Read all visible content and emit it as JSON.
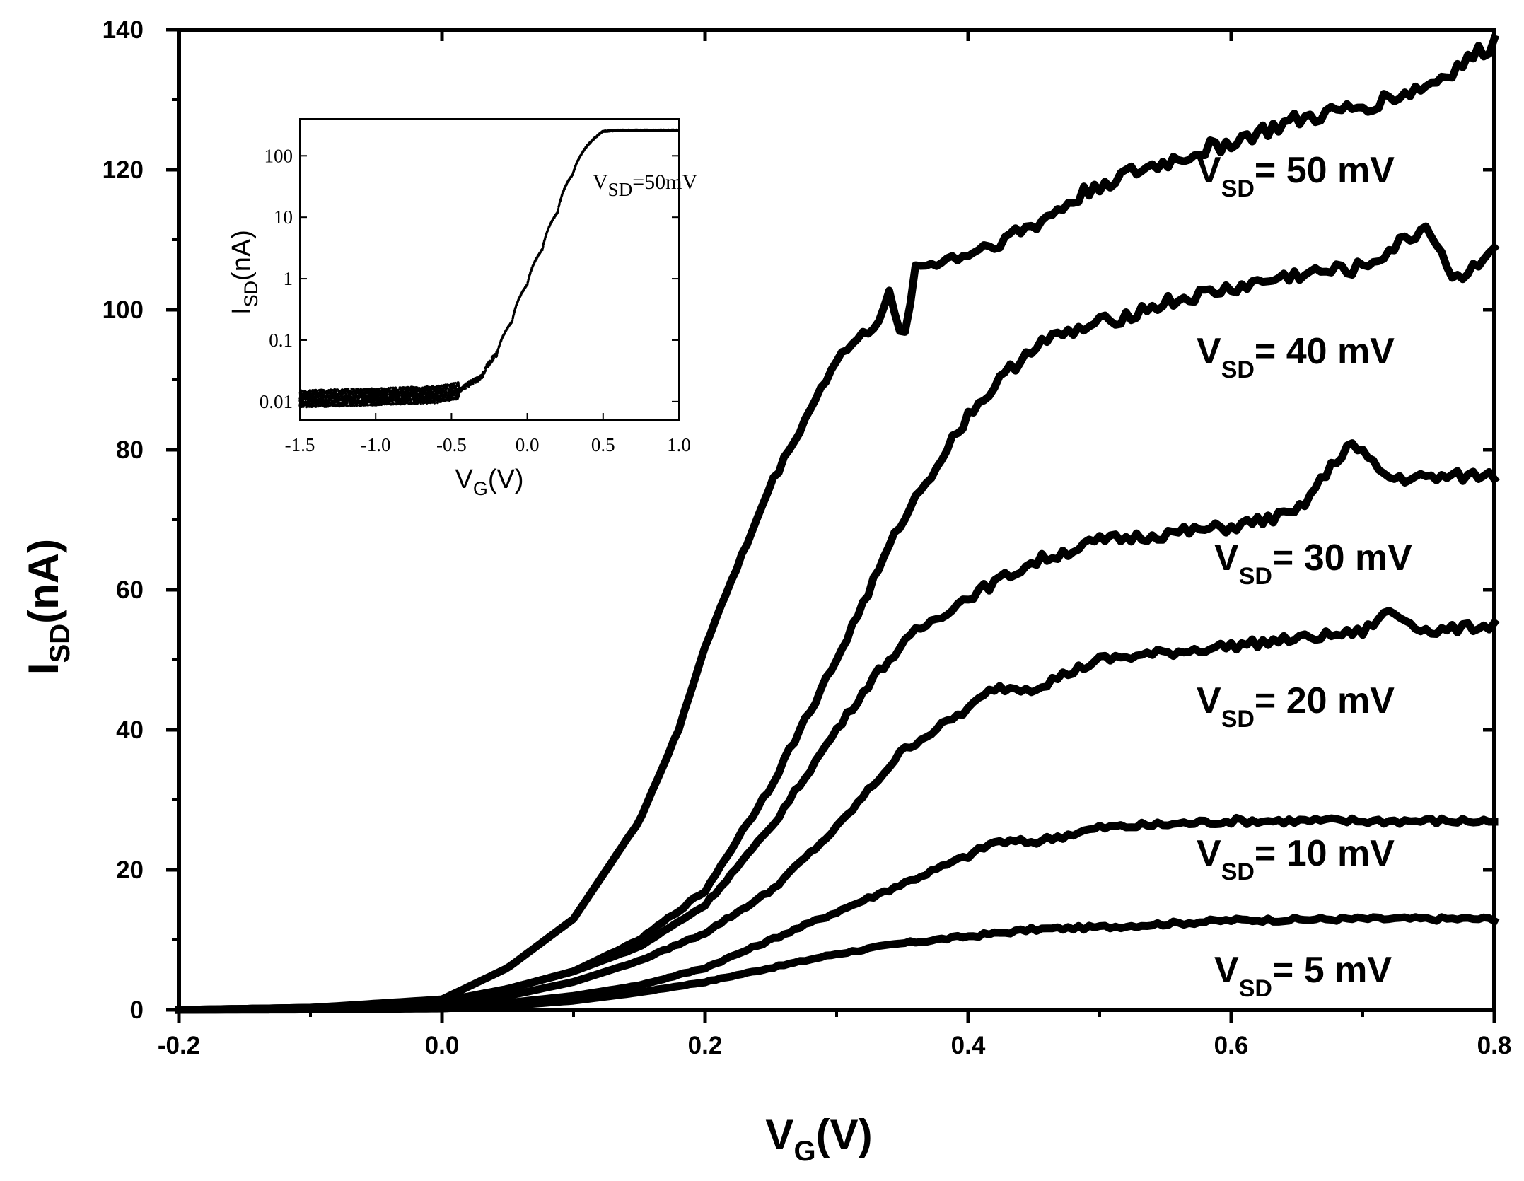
{
  "chart_data": [
    {
      "type": "line",
      "title": "",
      "xlabel": {
        "main": "V",
        "sub": "G",
        "unit": "(V)"
      },
      "ylabel": {
        "main": "I",
        "sub": "SD",
        "unit": "(nA)"
      },
      "xlim": [
        -0.2,
        0.8
      ],
      "ylim": [
        0,
        140
      ],
      "x_ticks": [
        -0.2,
        0.0,
        0.2,
        0.4,
        0.6,
        0.8
      ],
      "x_tick_labels": [
        "-0.2",
        "0.0",
        "0.2",
        "0.4",
        "0.6",
        "0.8"
      ],
      "y_ticks": [
        0,
        20,
        40,
        60,
        80,
        100,
        120,
        140
      ],
      "y_tick_labels": [
        "0",
        "20",
        "40",
        "60",
        "80",
        "100",
        "120",
        "140"
      ],
      "color": "#000000",
      "series": [
        {
          "id": "5",
          "name": "V_SD = 5 mV",
          "label": {
            "main": "V",
            "sub": "SD",
            "value": "= 5 mV"
          },
          "x": [
            -0.2,
            -0.1,
            0.0,
            0.05,
            0.1,
            0.15,
            0.2,
            0.25,
            0.3,
            0.35,
            0.4,
            0.45,
            0.5,
            0.55,
            0.6,
            0.7,
            0.8
          ],
          "y": [
            0,
            0.05,
            0.2,
            0.6,
            1.3,
            2.5,
            4.0,
            6.0,
            8.0,
            9.5,
            10.5,
            11.5,
            11.8,
            12.3,
            12.8,
            13.0,
            13.0
          ]
        },
        {
          "id": "10",
          "name": "V_SD = 10 mV",
          "label": {
            "main": "V",
            "sub": "SD",
            "value": "= 10 mV"
          },
          "x": [
            -0.2,
            -0.1,
            0.0,
            0.05,
            0.1,
            0.15,
            0.2,
            0.25,
            0.3,
            0.35,
            0.4,
            0.42,
            0.45,
            0.5,
            0.55,
            0.6,
            0.7,
            0.8
          ],
          "y": [
            0,
            0.1,
            0.4,
            1.0,
            2.0,
            3.5,
            6.0,
            10.0,
            14.0,
            18.0,
            22.0,
            24.0,
            24.0,
            26.0,
            26.5,
            27.0,
            27.0,
            27.0
          ]
        },
        {
          "id": "20",
          "name": "V_SD = 20 mV",
          "label": {
            "main": "V",
            "sub": "SD",
            "value": "= 20 mV"
          },
          "x": [
            -0.2,
            -0.1,
            0.0,
            0.05,
            0.1,
            0.15,
            0.2,
            0.25,
            0.3,
            0.35,
            0.4,
            0.42,
            0.45,
            0.5,
            0.55,
            0.6,
            0.65,
            0.7,
            0.72,
            0.75,
            0.8
          ],
          "y": [
            0,
            0.2,
            0.8,
            2.0,
            4.0,
            7.0,
            11.0,
            17.0,
            26.0,
            37.0,
            43.0,
            46.0,
            46.0,
            50.0,
            51.0,
            52.0,
            53.0,
            54.0,
            57.0,
            54.0,
            55.0
          ]
        },
        {
          "id": "30",
          "name": "V_SD = 30 mV",
          "label": {
            "main": "V",
            "sub": "SD",
            "value": "= 30 mV"
          },
          "x": [
            -0.2,
            -0.1,
            0.0,
            0.05,
            0.1,
            0.15,
            0.2,
            0.25,
            0.3,
            0.33,
            0.36,
            0.4,
            0.45,
            0.5,
            0.55,
            0.6,
            0.65,
            0.69,
            0.72,
            0.75,
            0.8
          ],
          "y": [
            0,
            0.3,
            1.2,
            3.0,
            5.5,
            9.0,
            15.0,
            26.0,
            40.0,
            48.0,
            54.0,
            59.0,
            64.0,
            67.0,
            68.0,
            69.0,
            71.0,
            81.0,
            76.0,
            76.0,
            76.5
          ]
        },
        {
          "id": "40",
          "name": "V_SD = 40 mV",
          "label": {
            "main": "V",
            "sub": "SD",
            "value": "= 40 mV"
          },
          "x": [
            -0.2,
            -0.1,
            0.0,
            0.05,
            0.1,
            0.15,
            0.2,
            0.25,
            0.3,
            0.35,
            0.4,
            0.45,
            0.5,
            0.55,
            0.6,
            0.65,
            0.7,
            0.75,
            0.77,
            0.8
          ],
          "y": [
            0,
            0.3,
            1.2,
            3.0,
            5.5,
            10.0,
            17.0,
            32.0,
            50.0,
            70.0,
            85.0,
            95.0,
            98.0,
            101.0,
            103.0,
            105.0,
            106.0,
            112.0,
            104.0,
            109.0
          ]
        },
        {
          "id": "50",
          "name": "V_SD = 50 mV",
          "label": {
            "main": "V",
            "sub": "SD",
            "value": "= 50 mV"
          },
          "x": [
            -0.2,
            -0.1,
            0.0,
            0.05,
            0.1,
            0.15,
            0.18,
            0.2,
            0.25,
            0.3,
            0.33,
            0.34,
            0.35,
            0.36,
            0.4,
            0.45,
            0.5,
            0.55,
            0.6,
            0.65,
            0.7,
            0.75,
            0.8
          ],
          "y": [
            0,
            0.3,
            1.5,
            6.0,
            13.0,
            27.0,
            40.0,
            52.0,
            75.0,
            93.0,
            98.0,
            102.0,
            95.0,
            106.0,
            108.0,
            112.0,
            118.0,
            121.0,
            124.0,
            127.0,
            129.0,
            132.0,
            138.0
          ]
        }
      ]
    },
    {
      "type": "scatter",
      "title": {
        "main": "V",
        "sub": "SD",
        "value": "=50mV"
      },
      "xlabel": {
        "main": "V",
        "sub": "G",
        "unit": "(V)"
      },
      "ylabel": {
        "main": "I",
        "sub": "SD",
        "unit": "(nA)"
      },
      "yscale": "log",
      "xlim": [
        -1.5,
        1.0
      ],
      "ylim": [
        0.005,
        400
      ],
      "x_ticks": [
        -1.5,
        -1.0,
        -0.5,
        0.0,
        0.5,
        1.0
      ],
      "x_tick_labels": [
        "-1.5",
        "-1.0",
        "-0.5",
        "0.0",
        "0.5",
        "1.0"
      ],
      "y_ticks": [
        0.01,
        0.1,
        1,
        10,
        100
      ],
      "y_tick_labels": [
        "0.01",
        "0.1",
        "1",
        "10",
        "100"
      ],
      "series": [
        {
          "name": "V_SD = 50mV",
          "x": [
            -1.5,
            -1.0,
            -0.6,
            -0.45,
            -0.3,
            -0.2,
            -0.1,
            0.0,
            0.1,
            0.2,
            0.3,
            0.4,
            0.5,
            0.6,
            1.0
          ],
          "y": [
            0.011,
            0.012,
            0.013,
            0.015,
            0.025,
            0.06,
            0.2,
            0.8,
            3,
            12,
            50,
            150,
            250,
            260,
            260
          ]
        }
      ]
    }
  ]
}
